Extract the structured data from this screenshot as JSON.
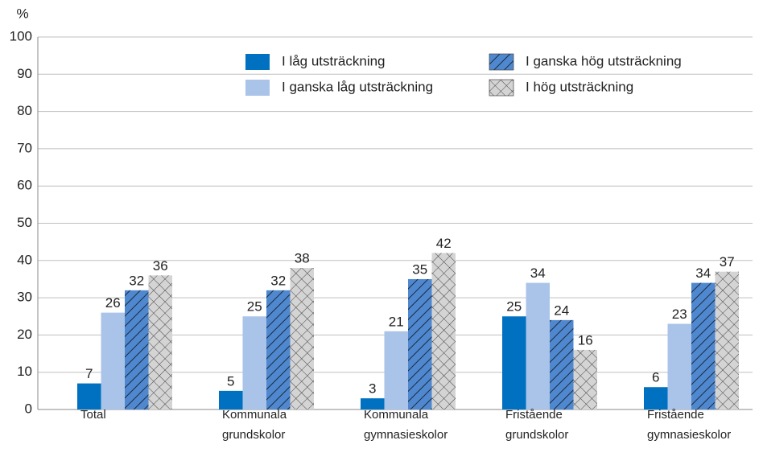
{
  "chart_data": {
    "type": "bar",
    "y_label": "%",
    "categories": [
      "Total",
      "Kommunala grundskolor",
      "Kommunala gymnasieskolor",
      "Fristående grundskolor",
      "Fristående gymnasieskolor"
    ],
    "series": [
      {
        "name": "I låg utsträckning",
        "color": "#0070c0",
        "hatch": "none",
        "values": [
          7,
          5,
          3,
          25,
          6
        ]
      },
      {
        "name": "I ganska låg utsträckning",
        "color": "#a9c4e8",
        "hatch": "none",
        "values": [
          26,
          25,
          21,
          34,
          23
        ]
      },
      {
        "name": "I ganska hög utsträckning",
        "color": "#4f88cf",
        "hatch": "diagonal",
        "values": [
          32,
          32,
          35,
          24,
          34
        ]
      },
      {
        "name": "I hög utsträckning",
        "color": "#d4d4d4",
        "hatch": "crosshatch",
        "values": [
          36,
          38,
          42,
          16,
          37
        ]
      }
    ],
    "ylim": [
      0,
      100
    ],
    "yticks": [
      0,
      10,
      20,
      30,
      40,
      50,
      60,
      70,
      80,
      90,
      100
    ],
    "grid": true
  }
}
